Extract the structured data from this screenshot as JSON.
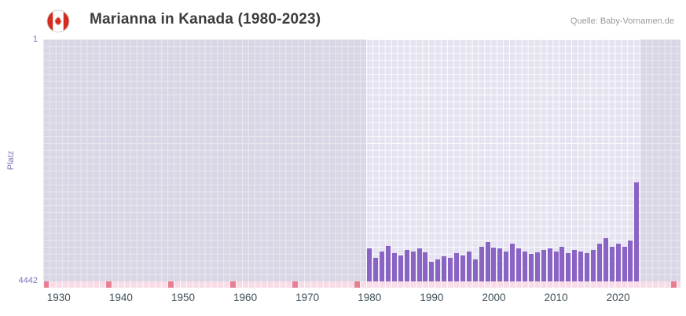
{
  "header": {
    "title": "Marianna in Kanada (1980-2023)",
    "source": "Quelle: Baby-Vornamen.de",
    "flag_icon": "canada-flag-icon"
  },
  "axes": {
    "y_label": "Platz",
    "y_top_tick": "1",
    "y_bottom_tick": "4442",
    "x_ticks": [
      1930,
      1940,
      1950,
      1960,
      1970,
      1980,
      1990,
      2000,
      2010,
      2020
    ]
  },
  "colors": {
    "bar": "#8a64c4",
    "plot_bg": "#e6e3f1",
    "outer_shade": "rgba(178,174,196,0.25)",
    "strip_bg": "#f8dce8",
    "strip_mark": "#e87e92",
    "x_text": "#3d4f58",
    "y_text": "#8173bb",
    "title_text": "#3c3c3c",
    "source_text": "#9b9b9b",
    "flag_red": "#d52b1e"
  },
  "chart_data": {
    "type": "bar",
    "title": "Marianna in Kanada (1980-2023)",
    "xlabel": "",
    "ylabel": "Platz",
    "y_axis_inverted": true,
    "ylim": [
      1,
      4442
    ],
    "x_range_visible": [
      1928,
      2030
    ],
    "data_window": [
      1980,
      2023
    ],
    "grid": true,
    "legend": "none",
    "years": [
      1980,
      1981,
      1982,
      1983,
      1984,
      1985,
      1986,
      1987,
      1988,
      1989,
      1990,
      1991,
      1992,
      1993,
      1994,
      1995,
      1996,
      1997,
      1998,
      1999,
      2000,
      2001,
      2002,
      2003,
      2004,
      2005,
      2006,
      2007,
      2008,
      2009,
      2010,
      2011,
      2012,
      2013,
      2014,
      2015,
      2016,
      2017,
      2018,
      2019,
      2020,
      2021,
      2022,
      2023
    ],
    "ranks": [
      3840,
      4010,
      3890,
      3790,
      3920,
      3960,
      3865,
      3890,
      3840,
      3905,
      4080,
      4040,
      3980,
      4010,
      3925,
      3965,
      3895,
      4040,
      3810,
      3720,
      3820,
      3840,
      3890,
      3750,
      3840,
      3890,
      3935,
      3910,
      3865,
      3840,
      3895,
      3810,
      3920,
      3865,
      3890,
      3920,
      3865,
      3750,
      3650,
      3810,
      3750,
      3810,
      3690,
      2625
    ],
    "no_rank_marker_years": [
      1928,
      1938,
      1948,
      1958,
      1968,
      1978,
      2029
    ]
  }
}
